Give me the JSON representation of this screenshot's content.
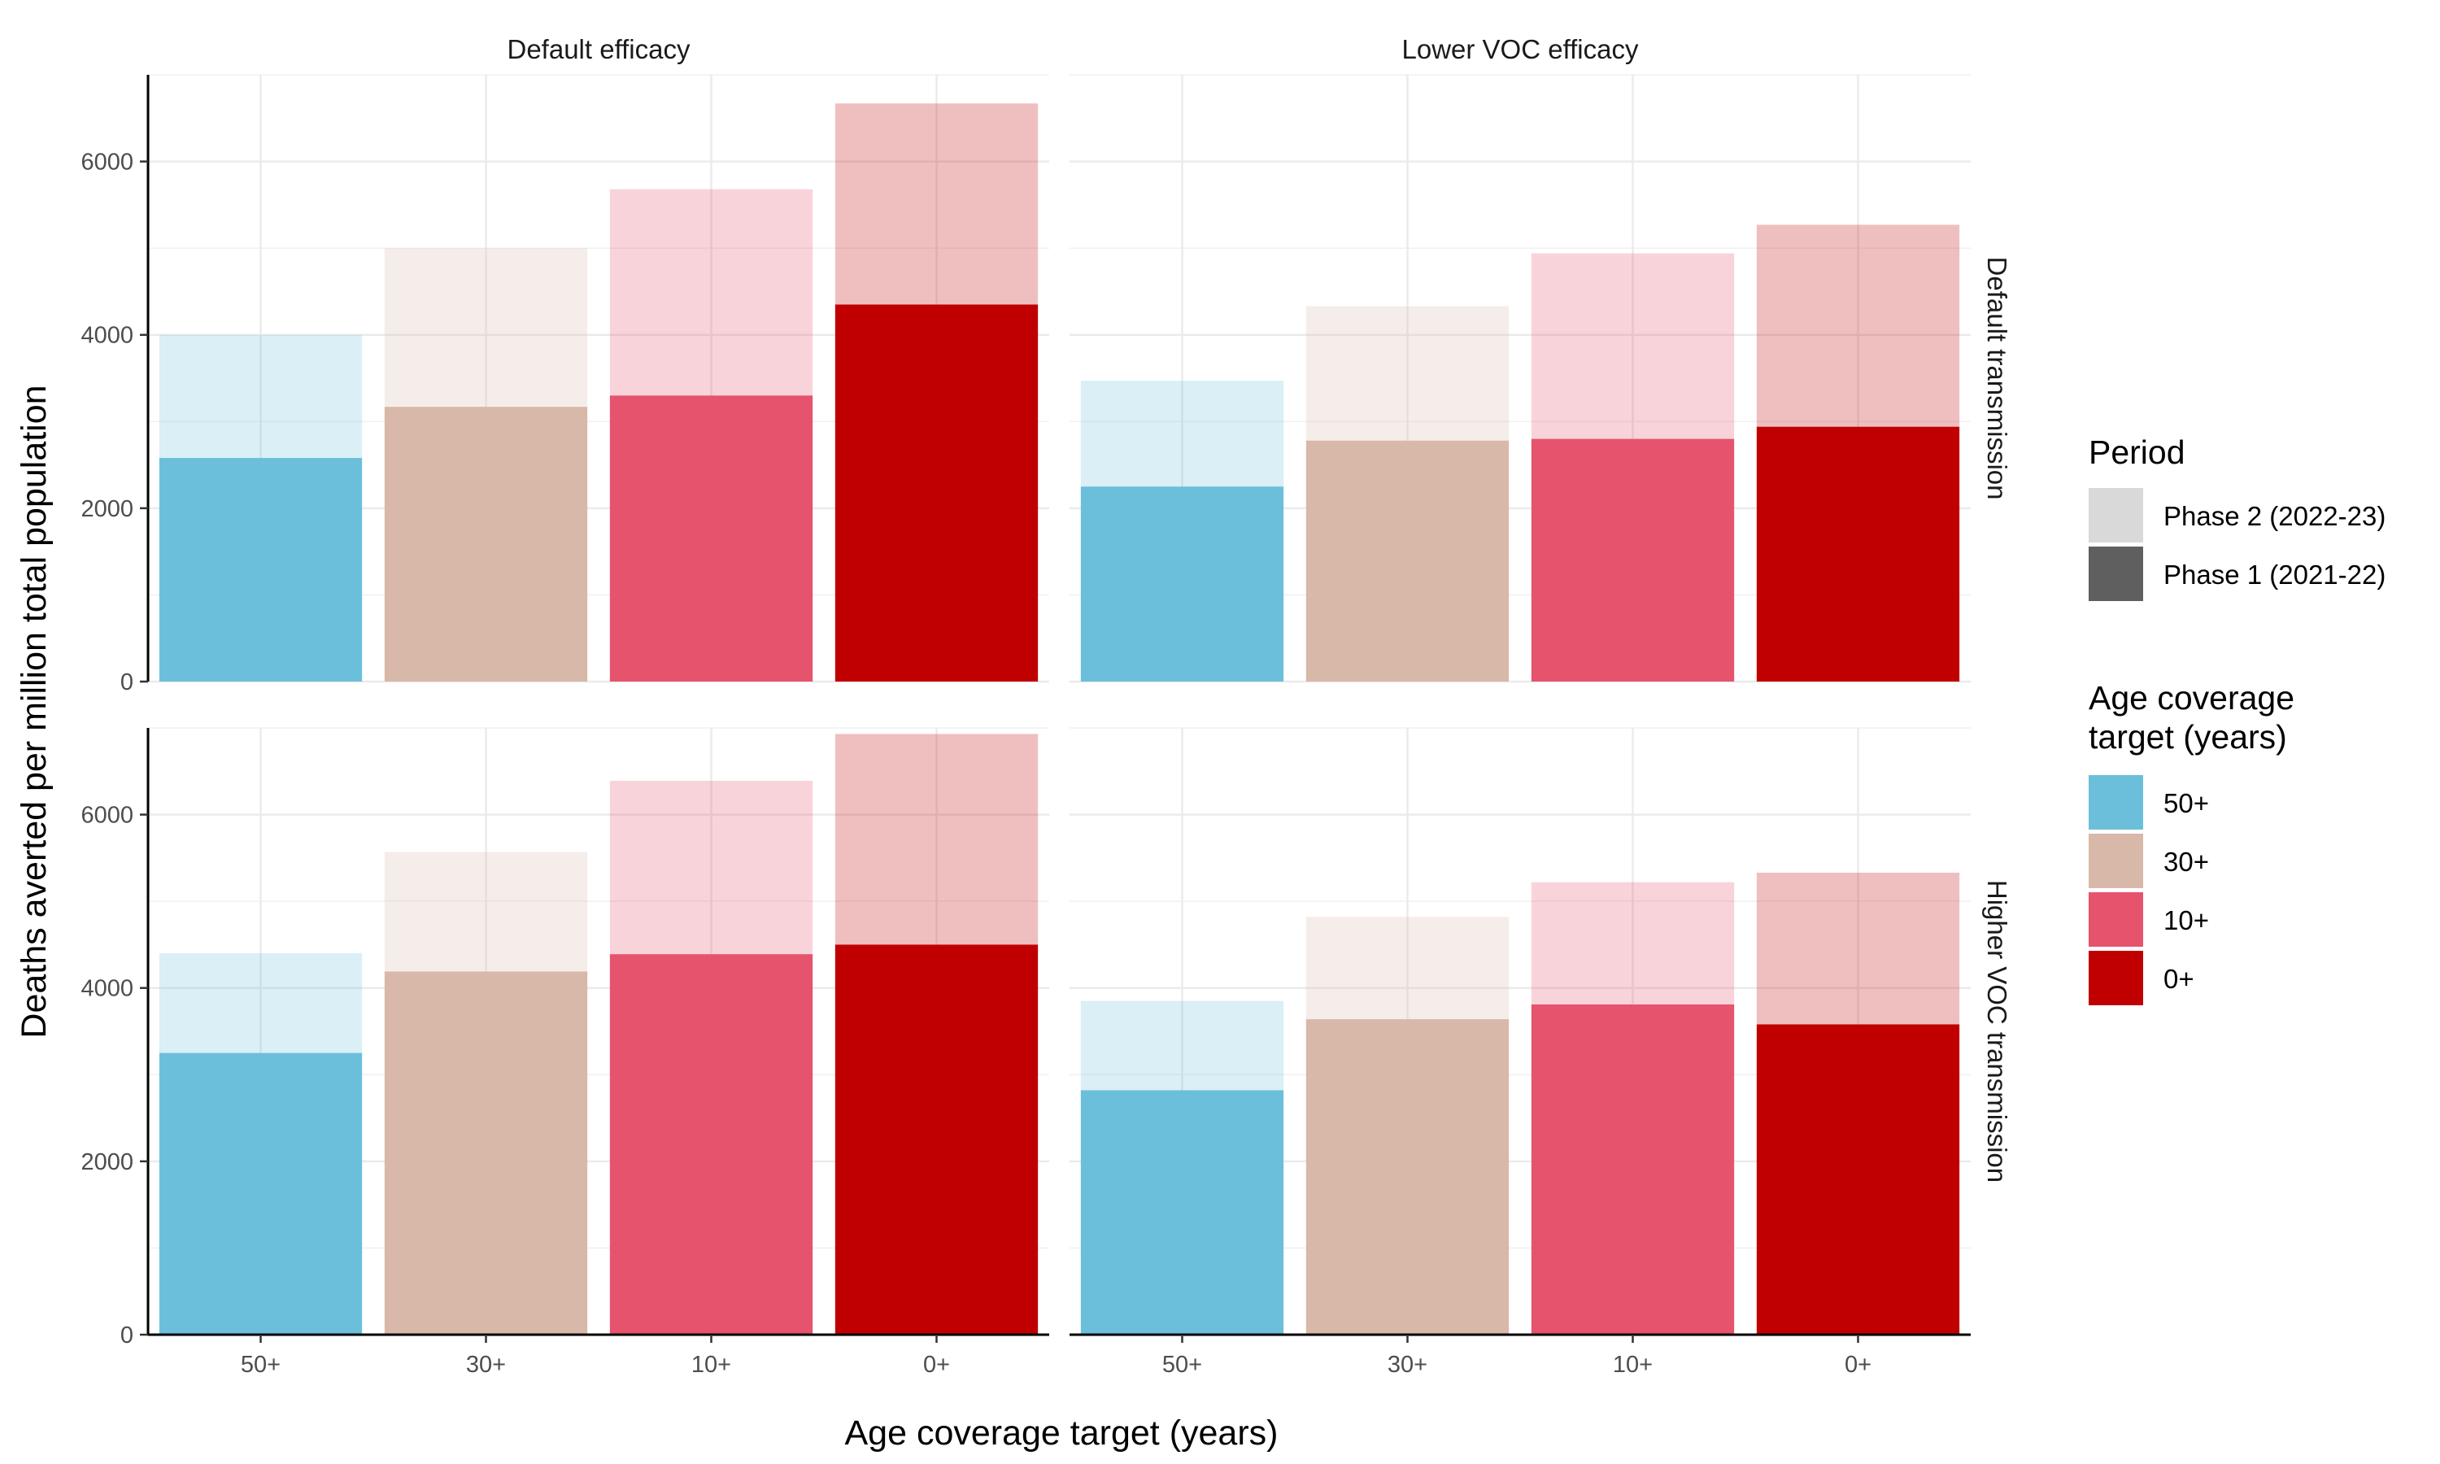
{
  "chart_data": {
    "type": "bar",
    "layout": "facet_grid",
    "xlabel": "Age coverage target (years)",
    "ylabel": "Deaths averted per million total population",
    "categories": [
      "50+",
      "30+",
      "10+",
      "0+"
    ],
    "ylim": [
      0,
      7000
    ],
    "yticks": [
      0,
      2000,
      4000,
      6000
    ],
    "grid": true,
    "legend_position": "right",
    "column_facets": [
      "Default efficacy",
      "Lower VOC efficacy"
    ],
    "row_facets": [
      "Default transmission",
      "Higher VOC transmission"
    ],
    "category_colors": {
      "50+": "#6cbfdb",
      "30+": "#d8b8a8",
      "10+": "#e5536d",
      "0+": "#c00000"
    },
    "legends": {
      "period": {
        "title": "Period",
        "entries": [
          {
            "label": "Phase 2 (2022-23)",
            "color": "#d9d9d9"
          },
          {
            "label": "Phase 1 (2021-22)",
            "color": "#5f5f5f"
          }
        ]
      },
      "age": {
        "title_lines": [
          "Age coverage",
          "target (years)"
        ],
        "entries": [
          {
            "label": "50+",
            "color": "#6cbfdb"
          },
          {
            "label": "30+",
            "color": "#d8b8a8"
          },
          {
            "label": "10+",
            "color": "#e5536d"
          },
          {
            "label": "0+",
            "color": "#c00000"
          }
        ]
      }
    },
    "panels": [
      {
        "column": "Default efficacy",
        "row": "Default transmission",
        "series": [
          {
            "name": "Phase 1 (2021-22)",
            "values": [
              2580,
              3170,
              3300,
              4350
            ]
          },
          {
            "name": "Phase 2 (2022-23)",
            "values": [
              1420,
              1830,
              2380,
              2320
            ]
          }
        ]
      },
      {
        "column": "Lower VOC efficacy",
        "row": "Default transmission",
        "series": [
          {
            "name": "Phase 1 (2021-22)",
            "values": [
              2250,
              2780,
              2800,
              2940
            ]
          },
          {
            "name": "Phase 2 (2022-23)",
            "values": [
              1220,
              1550,
              2140,
              2330
            ]
          }
        ]
      },
      {
        "column": "Default efficacy",
        "row": "Higher VOC transmission",
        "series": [
          {
            "name": "Phase 1 (2021-22)",
            "values": [
              3250,
              4190,
              4390,
              4500
            ]
          },
          {
            "name": "Phase 2 (2022-23)",
            "values": [
              1150,
              1380,
              2000,
              2430
            ]
          }
        ]
      },
      {
        "column": "Lower VOC efficacy",
        "row": "Higher VOC transmission",
        "series": [
          {
            "name": "Phase 1 (2021-22)",
            "values": [
              2820,
              3640,
              3810,
              3580
            ]
          },
          {
            "name": "Phase 2 (2022-23)",
            "values": [
              1030,
              1180,
              1410,
              1750
            ]
          }
        ]
      }
    ]
  }
}
